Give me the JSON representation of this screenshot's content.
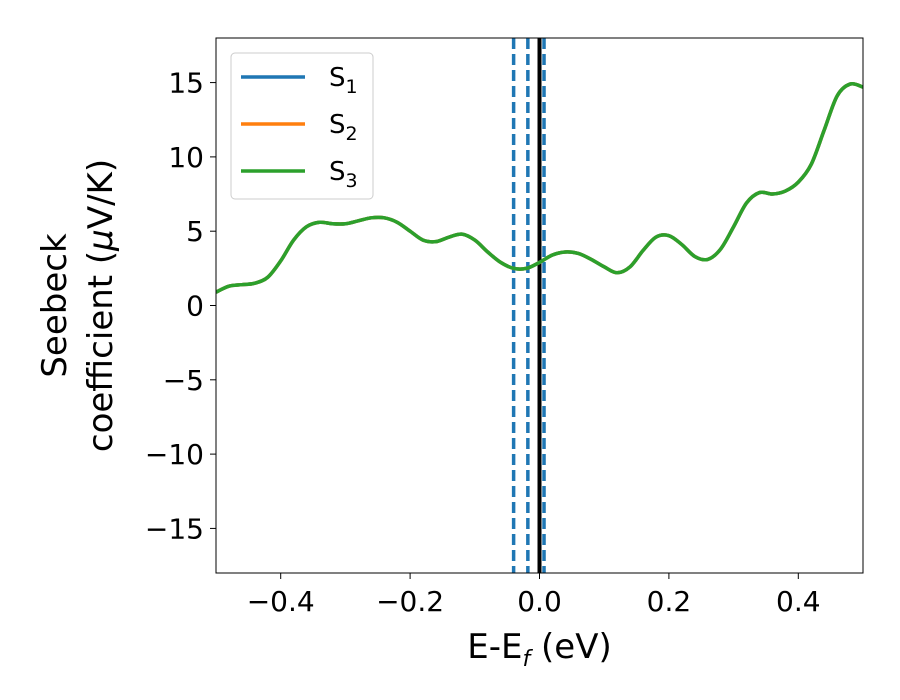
{
  "chart_data": {
    "type": "line",
    "xlabel": {
      "base": "E-E",
      "subscript": "f",
      "suffix": " (eV)"
    },
    "ylabel": {
      "line1": "Seebeck",
      "line2_prefix": "coefficient  (",
      "mu": "μ",
      "line2_suffix": "V/K)"
    },
    "xlim": [
      -0.5,
      0.5
    ],
    "ylim": [
      -18,
      18
    ],
    "xticks": [
      {
        "value": -0.4,
        "label": "−0.4"
      },
      {
        "value": -0.2,
        "label": "−0.2"
      },
      {
        "value": 0.0,
        "label": "0.0"
      },
      {
        "value": 0.2,
        "label": "0.2"
      },
      {
        "value": 0.4,
        "label": "0.4"
      }
    ],
    "yticks": [
      {
        "value": -15,
        "label": "−15"
      },
      {
        "value": -10,
        "label": "−10"
      },
      {
        "value": -5,
        "label": "−5"
      },
      {
        "value": 0,
        "label": "0"
      },
      {
        "value": 5,
        "label": "5"
      },
      {
        "value": 10,
        "label": "10"
      },
      {
        "value": 15,
        "label": "15"
      }
    ],
    "legend_position": "top-left",
    "grid": false,
    "series": [
      {
        "name": "S",
        "subscript": "1",
        "color": "#1f77b4",
        "values_ref": "S3"
      },
      {
        "name": "S",
        "subscript": "2",
        "color": "#ff7f0e",
        "values_ref": "S3"
      },
      {
        "name": "S",
        "subscript": "3",
        "color": "#2ca02c",
        "values_ref": "S3"
      }
    ],
    "x": [
      -0.5,
      -0.48,
      -0.46,
      -0.44,
      -0.42,
      -0.4,
      -0.38,
      -0.36,
      -0.34,
      -0.32,
      -0.3,
      -0.28,
      -0.26,
      -0.24,
      -0.22,
      -0.2,
      -0.18,
      -0.16,
      -0.14,
      -0.12,
      -0.1,
      -0.08,
      -0.06,
      -0.04,
      -0.02,
      0.0,
      0.02,
      0.04,
      0.06,
      0.08,
      0.1,
      0.12,
      0.14,
      0.16,
      0.18,
      0.2,
      0.22,
      0.24,
      0.26,
      0.28,
      0.3,
      0.32,
      0.34,
      0.36,
      0.38,
      0.4,
      0.42,
      0.44,
      0.46,
      0.48,
      0.5
    ],
    "y": [
      0.9,
      1.3,
      1.4,
      1.5,
      1.9,
      3.0,
      4.4,
      5.3,
      5.6,
      5.5,
      5.5,
      5.7,
      5.9,
      5.9,
      5.6,
      5.0,
      4.4,
      4.3,
      4.6,
      4.8,
      4.4,
      3.6,
      2.9,
      2.5,
      2.5,
      2.9,
      3.4,
      3.6,
      3.5,
      3.1,
      2.6,
      2.2,
      2.6,
      3.7,
      4.6,
      4.7,
      4.1,
      3.3,
      3.1,
      3.8,
      5.3,
      6.9,
      7.6,
      7.5,
      7.7,
      8.3,
      9.5,
      11.8,
      14.1,
      14.9,
      14.7
    ],
    "vlines": [
      {
        "x": -0.04,
        "style": "dashed",
        "color": "#1f77b4"
      },
      {
        "x": -0.018,
        "style": "dashed",
        "color": "#1f77b4"
      },
      {
        "x": 0.007,
        "style": "dashed",
        "color": "#1f77b4"
      },
      {
        "x": 0.0,
        "style": "solid",
        "color": "#000000"
      }
    ]
  }
}
